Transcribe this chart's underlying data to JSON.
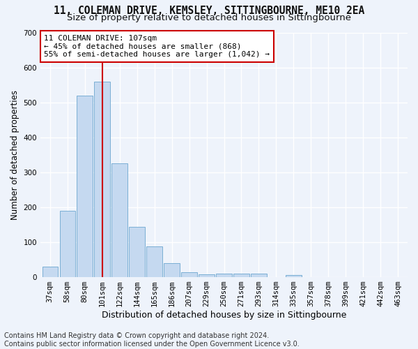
{
  "title1": "11, COLEMAN DRIVE, KEMSLEY, SITTINGBOURNE, ME10 2EA",
  "title2": "Size of property relative to detached houses in Sittingbourne",
  "xlabel": "Distribution of detached houses by size in Sittingbourne",
  "ylabel": "Number of detached properties",
  "categories": [
    "37sqm",
    "58sqm",
    "80sqm",
    "101sqm",
    "122sqm",
    "144sqm",
    "165sqm",
    "186sqm",
    "207sqm",
    "229sqm",
    "250sqm",
    "271sqm",
    "293sqm",
    "314sqm",
    "335sqm",
    "357sqm",
    "378sqm",
    "399sqm",
    "421sqm",
    "442sqm",
    "463sqm"
  ],
  "values": [
    30,
    190,
    520,
    560,
    325,
    143,
    88,
    40,
    13,
    8,
    10,
    10,
    10,
    0,
    5,
    0,
    0,
    0,
    0,
    0,
    0
  ],
  "bar_color": "#c5d9f0",
  "bar_edge_color": "#7bafd4",
  "vline_x_index": 3,
  "vline_color": "#cc0000",
  "annotation_line1": "11 COLEMAN DRIVE: 107sqm",
  "annotation_line2": "← 45% of detached houses are smaller (868)",
  "annotation_line3": "55% of semi-detached houses are larger (1,042) →",
  "annotation_box_color": "#ffffff",
  "annotation_box_edge": "#cc0000",
  "footer": "Contains HM Land Registry data © Crown copyright and database right 2024.\nContains public sector information licensed under the Open Government Licence v3.0.",
  "ylim": [
    0,
    700
  ],
  "yticks": [
    0,
    100,
    200,
    300,
    400,
    500,
    600,
    700
  ],
  "background_color": "#eef3fb",
  "grid_color": "#ffffff",
  "title1_fontsize": 10.5,
  "title2_fontsize": 9.5,
  "xlabel_fontsize": 9,
  "ylabel_fontsize": 8.5,
  "tick_fontsize": 7.5,
  "annot_fontsize": 8,
  "footer_fontsize": 7
}
